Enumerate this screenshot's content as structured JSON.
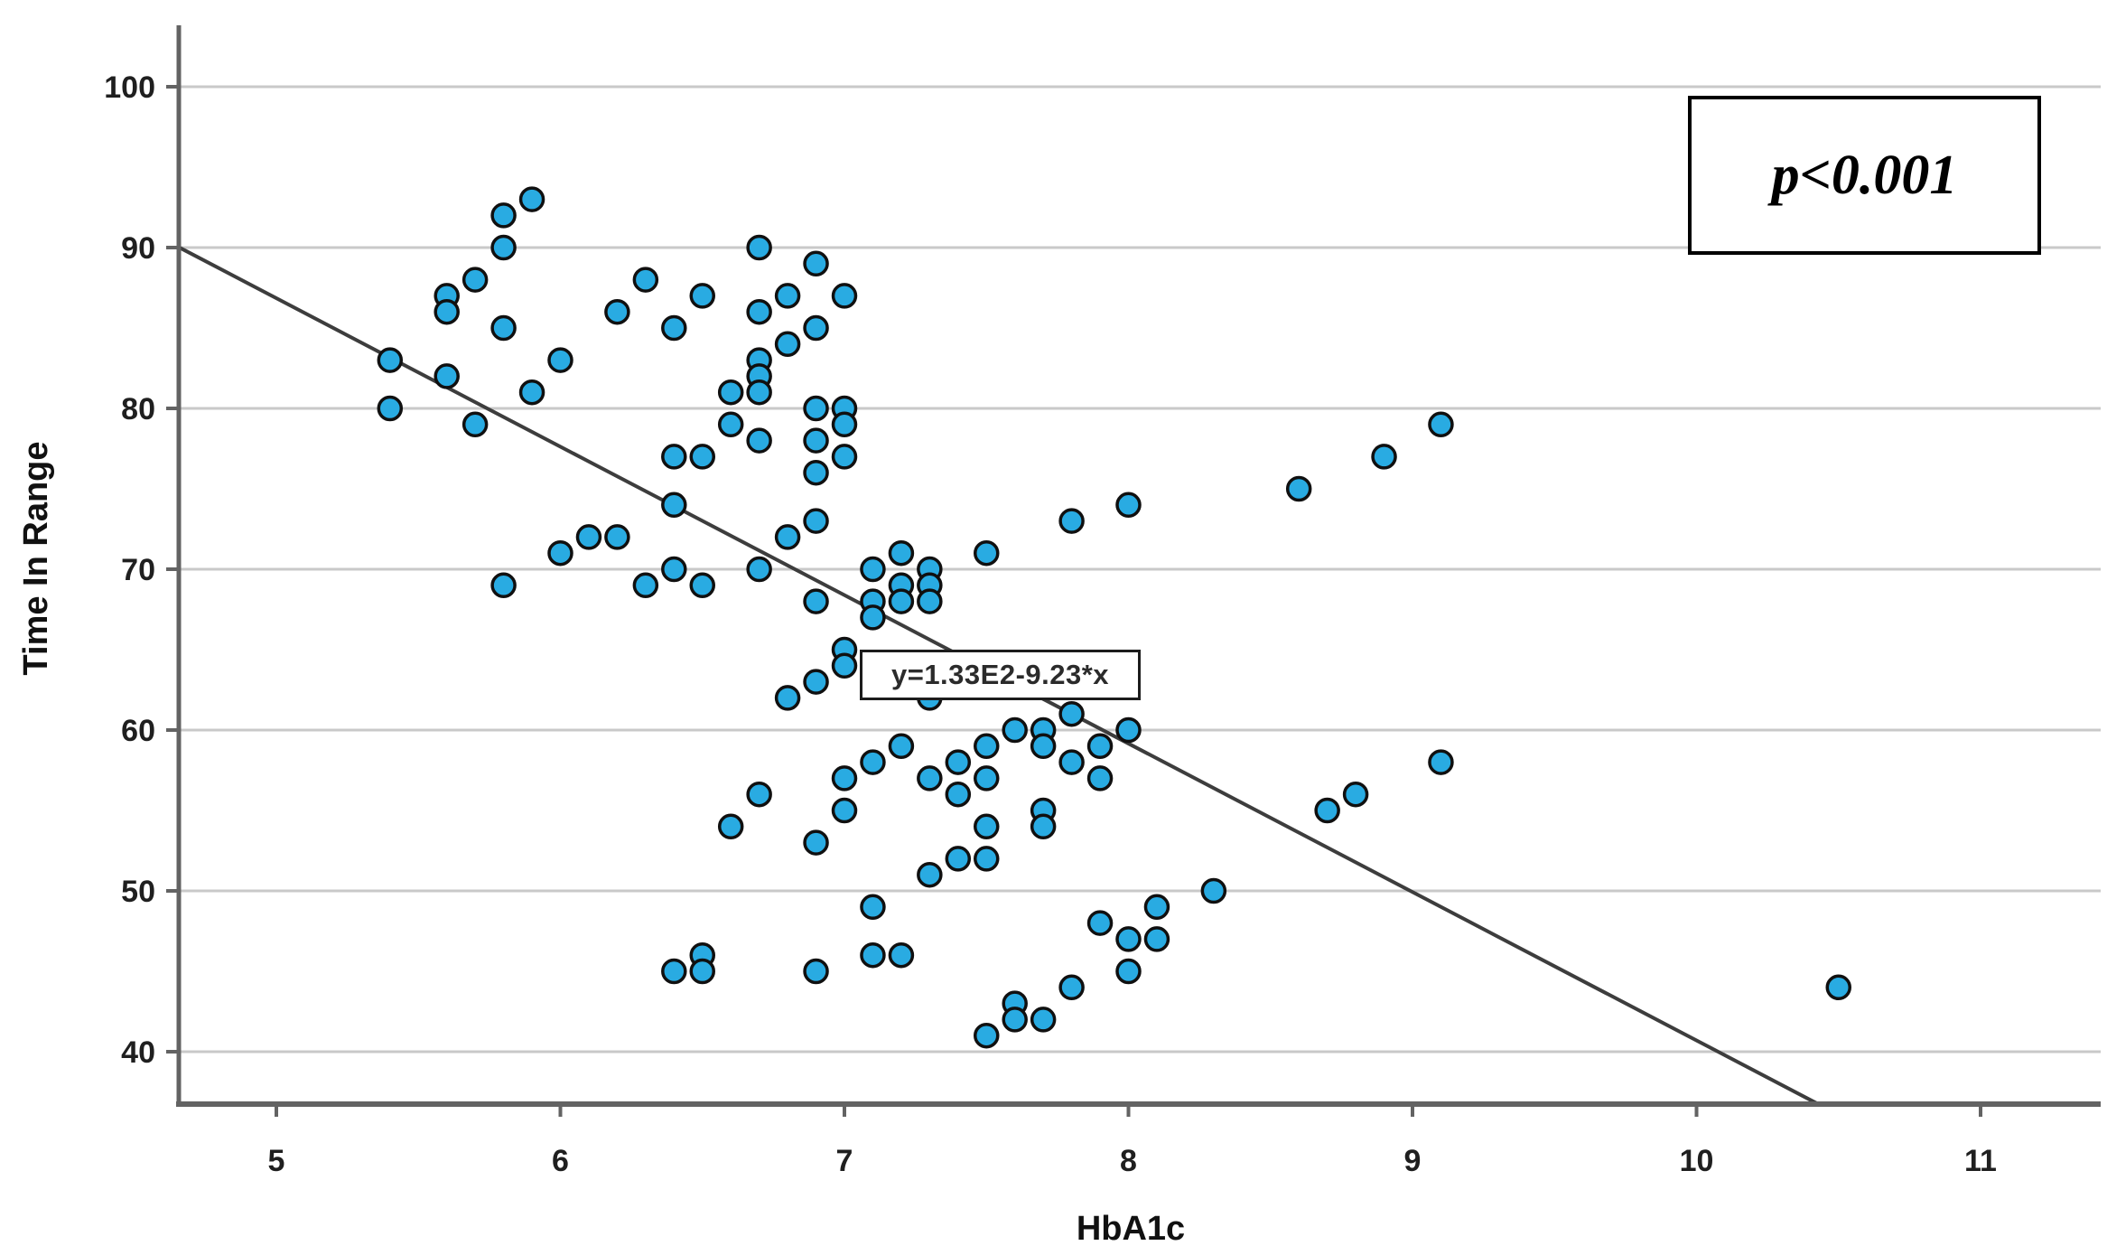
{
  "chart_data": {
    "type": "scatter",
    "title": "",
    "xlabel": "HbA1c",
    "ylabel": "Time In Range",
    "x_ticks": [
      5,
      6,
      7,
      8,
      9,
      10,
      11
    ],
    "y_ticks": [
      100,
      90,
      80,
      70,
      60,
      50,
      40
    ],
    "xlim": [
      4.66,
      11.44
    ],
    "ylim": [
      36.7,
      103.7
    ],
    "grid": "horizontal-only",
    "legend_position": "none",
    "points": [
      [
        5.4,
        83
      ],
      [
        5.4,
        80
      ],
      [
        5.6,
        87
      ],
      [
        5.6,
        86
      ],
      [
        5.6,
        82
      ],
      [
        5.7,
        88
      ],
      [
        5.7,
        79
      ],
      [
        5.8,
        92
      ],
      [
        5.8,
        90
      ],
      [
        5.8,
        85
      ],
      [
        5.8,
        69
      ],
      [
        5.9,
        93
      ],
      [
        5.9,
        81
      ],
      [
        6.0,
        83
      ],
      [
        6.0,
        71
      ],
      [
        6.1,
        72
      ],
      [
        6.2,
        86
      ],
      [
        6.2,
        72
      ],
      [
        6.3,
        88
      ],
      [
        6.3,
        69
      ],
      [
        6.4,
        85
      ],
      [
        6.4,
        77
      ],
      [
        6.4,
        74
      ],
      [
        6.4,
        70
      ],
      [
        6.4,
        45
      ],
      [
        6.5,
        87
      ],
      [
        6.5,
        77
      ],
      [
        6.5,
        69
      ],
      [
        6.5,
        46
      ],
      [
        6.5,
        45
      ],
      [
        6.6,
        81
      ],
      [
        6.6,
        79
      ],
      [
        6.6,
        54
      ],
      [
        6.7,
        90
      ],
      [
        6.7,
        86
      ],
      [
        6.7,
        83
      ],
      [
        6.7,
        82
      ],
      [
        6.7,
        81
      ],
      [
        6.7,
        78
      ],
      [
        6.7,
        70
      ],
      [
        6.7,
        56
      ],
      [
        6.8,
        87
      ],
      [
        6.8,
        84
      ],
      [
        6.8,
        72
      ],
      [
        6.8,
        62
      ],
      [
        6.9,
        89
      ],
      [
        6.9,
        85
      ],
      [
        6.9,
        80
      ],
      [
        6.9,
        78
      ],
      [
        6.9,
        76
      ],
      [
        6.9,
        73
      ],
      [
        6.9,
        68
      ],
      [
        6.9,
        63
      ],
      [
        6.9,
        53
      ],
      [
        6.9,
        45
      ],
      [
        7.0,
        87
      ],
      [
        7.0,
        80
      ],
      [
        7.0,
        79
      ],
      [
        7.0,
        77
      ],
      [
        7.0,
        65
      ],
      [
        7.0,
        64
      ],
      [
        7.0,
        57
      ],
      [
        7.0,
        55
      ],
      [
        7.1,
        70
      ],
      [
        7.1,
        68
      ],
      [
        7.1,
        67
      ],
      [
        7.1,
        58
      ],
      [
        7.1,
        49
      ],
      [
        7.1,
        46
      ],
      [
        7.2,
        71
      ],
      [
        7.2,
        69
      ],
      [
        7.2,
        68
      ],
      [
        7.2,
        59
      ],
      [
        7.2,
        46
      ],
      [
        7.3,
        70
      ],
      [
        7.3,
        69
      ],
      [
        7.3,
        68
      ],
      [
        7.3,
        62
      ],
      [
        7.3,
        57
      ],
      [
        7.3,
        51
      ],
      [
        7.4,
        58
      ],
      [
        7.4,
        56
      ],
      [
        7.4,
        52
      ],
      [
        7.5,
        71
      ],
      [
        7.5,
        59
      ],
      [
        7.5,
        57
      ],
      [
        7.5,
        54
      ],
      [
        7.5,
        52
      ],
      [
        7.5,
        41
      ],
      [
        7.6,
        60
      ],
      [
        7.6,
        43
      ],
      [
        7.6,
        42
      ],
      [
        7.7,
        60
      ],
      [
        7.7,
        59
      ],
      [
        7.7,
        55
      ],
      [
        7.7,
        54
      ],
      [
        7.7,
        42
      ],
      [
        7.8,
        73
      ],
      [
        7.8,
        61
      ],
      [
        7.8,
        58
      ],
      [
        7.8,
        44
      ],
      [
        7.9,
        59
      ],
      [
        7.9,
        57
      ],
      [
        7.9,
        48
      ],
      [
        8.0,
        74
      ],
      [
        8.0,
        60
      ],
      [
        8.0,
        47
      ],
      [
        8.0,
        45
      ],
      [
        8.1,
        49
      ],
      [
        8.1,
        47
      ],
      [
        8.3,
        50
      ],
      [
        8.6,
        75
      ],
      [
        8.7,
        55
      ],
      [
        8.8,
        56
      ],
      [
        8.9,
        77
      ],
      [
        9.1,
        79
      ],
      [
        9.1,
        58
      ],
      [
        10.5,
        44
      ]
    ],
    "regression": {
      "label": "y=1.33E2-9.23*x",
      "intercept": 133,
      "slope": -9.23,
      "x_start": 4.66,
      "x_end": 10.43
    },
    "annotation": "p<0.001",
    "colors": {
      "dot_fill": "#29ABE2",
      "dot_stroke": "#101010",
      "regression_line": "#3d3d3d",
      "gridline": "#c9c9c9",
      "axis": "#636363",
      "text": "#1f1f1f"
    }
  }
}
